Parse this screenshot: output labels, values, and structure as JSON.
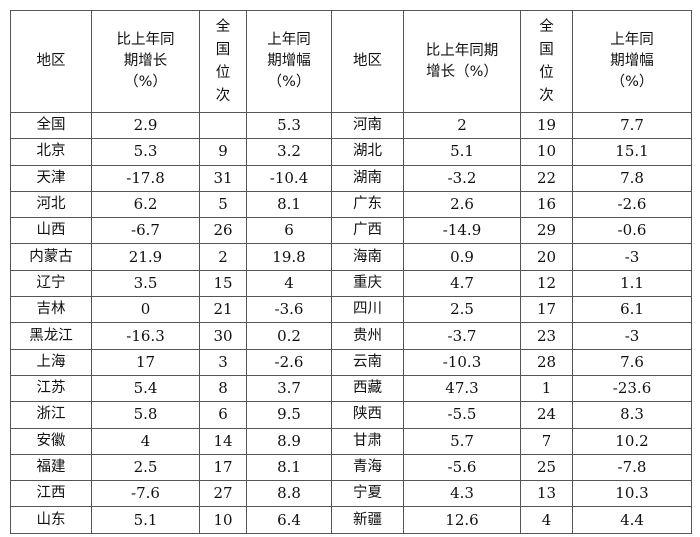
{
  "headers": {
    "region": "地区",
    "growth_left": [
      "比上年同",
      "期增长",
      "（%）"
    ],
    "rank": "全国位次",
    "prev_left": [
      "上年同",
      "期增幅",
      "（%）"
    ],
    "growth_right": [
      "比上年同期",
      "增长（%）"
    ],
    "prev_right": [
      "上年同",
      "期增幅",
      "（%）"
    ]
  },
  "rows": [
    {
      "l": [
        "全国",
        "2.9",
        "",
        "5.3"
      ],
      "r": [
        "河南",
        "2",
        "19",
        "7.7"
      ]
    },
    {
      "l": [
        "北京",
        "5.3",
        "9",
        "3.2"
      ],
      "r": [
        "湖北",
        "5.1",
        "10",
        "15.1"
      ]
    },
    {
      "l": [
        "天津",
        "-17.8",
        "31",
        "-10.4"
      ],
      "r": [
        "湖南",
        "-3.2",
        "22",
        "7.8"
      ]
    },
    {
      "l": [
        "河北",
        "6.2",
        "5",
        "8.1"
      ],
      "r": [
        "广东",
        "2.6",
        "16",
        "-2.6"
      ]
    },
    {
      "l": [
        "山西",
        "-6.7",
        "26",
        "6"
      ],
      "r": [
        "广西",
        "-14.9",
        "29",
        "-0.6"
      ]
    },
    {
      "l": [
        "内蒙古",
        "21.9",
        "2",
        "19.8"
      ],
      "r": [
        "海南",
        "0.9",
        "20",
        "-3"
      ]
    },
    {
      "l": [
        "辽宁",
        "3.5",
        "15",
        "4"
      ],
      "r": [
        "重庆",
        "4.7",
        "12",
        "1.1"
      ]
    },
    {
      "l": [
        "吉林",
        "0",
        "21",
        "-3.6"
      ],
      "r": [
        "四川",
        "2.5",
        "17",
        "6.1"
      ]
    },
    {
      "l": [
        "黑龙江",
        "-16.3",
        "30",
        "0.2"
      ],
      "r": [
        "贵州",
        "-3.7",
        "23",
        "-3"
      ]
    },
    {
      "l": [
        "上海",
        "17",
        "3",
        "-2.6"
      ],
      "r": [
        "云南",
        "-10.3",
        "28",
        "7.6"
      ]
    },
    {
      "l": [
        "江苏",
        "5.4",
        "8",
        "3.7"
      ],
      "r": [
        "西藏",
        "47.3",
        "1",
        "-23.6"
      ]
    },
    {
      "l": [
        "浙江",
        "5.8",
        "6",
        "9.5"
      ],
      "r": [
        "陕西",
        "-5.5",
        "24",
        "8.3"
      ]
    },
    {
      "l": [
        "安徽",
        "4",
        "14",
        "8.9"
      ],
      "r": [
        "甘肃",
        "5.7",
        "7",
        "10.2"
      ]
    },
    {
      "l": [
        "福建",
        "2.5",
        "17",
        "8.1"
      ],
      "r": [
        "青海",
        "-5.6",
        "25",
        "-7.8"
      ]
    },
    {
      "l": [
        "江西",
        "-7.6",
        "27",
        "8.8"
      ],
      "r": [
        "宁夏",
        "4.3",
        "13",
        "10.3"
      ]
    },
    {
      "l": [
        "山东",
        "5.1",
        "10",
        "6.4"
      ],
      "r": [
        "新疆",
        "12.6",
        "4",
        "4.4"
      ]
    }
  ]
}
